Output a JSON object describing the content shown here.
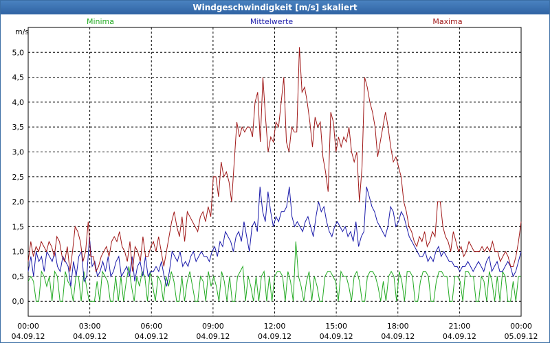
{
  "window": {
    "title": "Windgeschwindigkeit [m/s] skaliert"
  },
  "chart_data": {
    "type": "line",
    "title": "Windgeschwindigkeit [m/s] skaliert",
    "ylabel": "m/s",
    "ylim": [
      -0.3,
      5.5
    ],
    "xlim_hours": [
      0,
      24
    ],
    "yticks": [
      "0,0",
      "0,5",
      "1,0",
      "1,5",
      "2,0",
      "2,5",
      "3,0",
      "3,5",
      "4,0",
      "4,5",
      "5,0"
    ],
    "xticks": [
      {
        "time": "00:00",
        "date": "04.09.12"
      },
      {
        "time": "03:00",
        "date": "04.09.12"
      },
      {
        "time": "06:00",
        "date": "04.09.12"
      },
      {
        "time": "09:00",
        "date": "04.09.12"
      },
      {
        "time": "12:00",
        "date": "04.09.12"
      },
      {
        "time": "15:00",
        "date": "04.09.12"
      },
      {
        "time": "18:00",
        "date": "04.09.12"
      },
      {
        "time": "21:00",
        "date": "04.09.12"
      },
      {
        "time": "00:00",
        "date": "05.09.12"
      }
    ],
    "grid": true,
    "legend_position": "top",
    "series": [
      {
        "name": "Minima",
        "color": "#22aa22",
        "values": [
          0.4,
          0.5,
          0.4,
          0.0,
          0.0,
          0.6,
          0.5,
          0.3,
          0.5,
          0.0,
          0.6,
          0.5,
          0.0,
          0.0,
          0.6,
          0.4,
          0.3,
          0.0,
          0.5,
          0.5,
          0.0,
          0.6,
          0.3,
          0.0,
          0.0,
          0.0,
          0.4,
          0.0,
          0.6,
          0.5,
          0.4,
          0.0,
          0.0,
          0.5,
          0.0,
          0.5,
          0.0,
          0.4,
          0.7,
          0.3,
          0.0,
          0.5,
          0.3,
          0.6,
          0.5,
          0.0,
          0.6,
          0.3,
          0.0,
          0.5,
          0.4,
          0.0,
          0.5,
          0.3,
          0.6,
          0.4,
          0.0,
          0.0,
          0.5,
          0.0,
          0.4,
          0.6,
          0.3,
          0.0,
          0.0,
          0.5,
          0.4,
          0.0,
          0.6,
          0.3,
          0.5,
          0.3,
          0.0,
          0.6,
          0.4,
          0.0,
          0.5,
          0.0,
          0.0,
          0.5,
          0.6,
          0.7,
          0.0,
          0.5,
          0.3,
          0.0,
          0.5,
          0.0,
          0.5,
          0.6,
          0.0,
          0.5,
          0.0,
          0.5,
          0.6,
          0.6,
          0.5,
          0.0,
          0.6,
          0.4,
          0.0,
          1.2,
          0.5,
          0.3,
          0.0,
          0.4,
          0.6,
          0.0,
          0.5,
          0.3,
          0.0,
          0.0,
          0.5,
          0.6,
          0.6,
          0.5,
          0.4,
          0.0,
          0.6,
          0.5,
          0.5,
          0.3,
          0.0,
          0.5,
          0.6,
          0.4,
          0.0,
          0.0,
          0.5,
          0.6,
          0.6,
          0.5,
          0.3,
          0.0,
          0.4,
          0.0,
          0.5,
          0.6,
          0.5,
          0.0,
          0.6,
          0.4,
          0.0,
          0.6,
          0.6,
          0.5,
          0.0,
          0.0,
          0.4,
          0.6,
          0.6,
          0.5,
          0.0,
          0.0,
          0.4,
          0.6,
          0.6,
          0.5,
          0.5,
          0.0,
          0.0,
          0.5,
          0.5,
          0.4,
          0.0,
          0.6,
          0.6,
          0.5,
          0.5,
          0.0,
          0.0,
          0.5,
          0.4,
          0.0,
          0.6,
          0.4,
          0.0,
          0.5,
          0.0,
          0.6,
          0.5,
          0.0,
          0.0,
          0.4,
          0.0,
          0.5,
          0.5
        ]
      },
      {
        "name": "Mittelwerte",
        "color": "#1a1aaa",
        "values": [
          0.6,
          0.9,
          0.5,
          1.0,
          0.8,
          0.9,
          0.6,
          1.0,
          0.9,
          0.8,
          1.0,
          0.7,
          0.6,
          0.9,
          0.8,
          0.7,
          0.3,
          0.8,
          0.5,
          0.9,
          1.0,
          0.4,
          0.5,
          1.3,
          0.7,
          0.8,
          0.5,
          0.6,
          0.8,
          0.6,
          0.9,
          0.5,
          0.6,
          0.8,
          0.9,
          0.5,
          0.6,
          0.7,
          0.5,
          0.9,
          0.4,
          0.7,
          0.8,
          0.5,
          0.9,
          0.5,
          0.6,
          0.6,
          0.7,
          0.6,
          0.8,
          0.5,
          0.3,
          0.6,
          1.0,
          0.9,
          0.8,
          1.0,
          0.7,
          0.8,
          0.7,
          0.9,
          1.0,
          0.8,
          0.9,
          1.0,
          0.9,
          0.9,
          0.8,
          1.0,
          1.1,
          0.9,
          1.2,
          1.1,
          1.4,
          1.3,
          1.2,
          1.0,
          1.3,
          1.4,
          1.2,
          1.6,
          1.3,
          1.0,
          1.5,
          1.6,
          1.4,
          2.3,
          1.8,
          1.6,
          2.2,
          1.8,
          1.5,
          1.7,
          1.6,
          1.8,
          1.8,
          1.9,
          2.3,
          1.7,
          1.5,
          1.6,
          1.5,
          1.4,
          1.6,
          1.7,
          1.5,
          1.3,
          1.7,
          2.0,
          1.8,
          1.9,
          1.6,
          1.4,
          1.3,
          1.5,
          1.6,
          1.5,
          1.4,
          1.5,
          1.3,
          1.4,
          1.2,
          1.6,
          1.1,
          1.3,
          1.4,
          2.3,
          2.1,
          1.9,
          1.8,
          1.6,
          1.5,
          1.4,
          1.3,
          1.5,
          1.9,
          1.8,
          1.5,
          1.6,
          1.8,
          1.7,
          1.5,
          1.3,
          1.2,
          1.1,
          1.0,
          0.9,
          0.9,
          1.0,
          0.8,
          0.9,
          0.8,
          1.0,
          1.1,
          0.9,
          1.0,
          0.9,
          0.8,
          0.8,
          0.7,
          0.7,
          0.6,
          0.7,
          0.7,
          0.8,
          0.7,
          0.6,
          0.7,
          0.8,
          0.7,
          0.6,
          0.8,
          0.9,
          0.6,
          0.7,
          0.8,
          0.6,
          0.6,
          0.7,
          0.8,
          0.7,
          0.5,
          0.6,
          0.8,
          1.0
        ]
      },
      {
        "name": "Maxima",
        "color": "#a01818",
        "values": [
          0.8,
          1.2,
          0.9,
          1.1,
          1.0,
          1.2,
          1.1,
          1.0,
          1.2,
          1.1,
          0.9,
          1.3,
          1.2,
          0.9,
          0.8,
          1.1,
          0.6,
          1.0,
          1.5,
          1.4,
          1.2,
          0.8,
          1.0,
          1.6,
          0.9,
          0.9,
          0.6,
          0.7,
          0.9,
          1.0,
          1.1,
          0.9,
          1.2,
          1.3,
          1.2,
          1.4,
          1.1,
          1.0,
          0.8,
          1.2,
          0.6,
          1.1,
          1.0,
          0.8,
          1.3,
          0.9,
          0.9,
          1.1,
          1.2,
          1.0,
          1.3,
          1.0,
          0.7,
          1.0,
          1.3,
          1.6,
          1.8,
          1.5,
          1.3,
          1.7,
          1.2,
          1.8,
          1.7,
          1.6,
          1.5,
          1.4,
          1.7,
          1.8,
          1.6,
          1.9,
          1.7,
          2.5,
          2.5,
          2.1,
          2.8,
          2.5,
          2.6,
          2.4,
          2.0,
          2.8,
          3.6,
          3.3,
          3.5,
          3.4,
          3.5,
          3.5,
          3.3,
          4.0,
          4.2,
          3.2,
          4.5,
          3.7,
          3.0,
          3.3,
          3.2,
          3.6,
          3.5,
          4.0,
          4.5,
          3.2,
          3.0,
          3.5,
          3.4,
          3.4,
          5.1,
          4.2,
          4.3,
          4.0,
          3.6,
          3.1,
          3.7,
          3.5,
          3.6,
          2.9,
          2.6,
          2.2,
          3.8,
          3.6,
          3.0,
          3.3,
          3.1,
          3.3,
          3.2,
          3.5,
          3.0,
          2.8,
          3.0,
          2.0,
          2.7,
          4.5,
          4.3,
          4.0,
          3.8,
          3.5,
          2.9,
          3.2,
          3.5,
          3.8,
          3.5,
          3.1,
          2.8,
          2.9,
          2.7,
          2.5,
          2.0,
          1.8,
          1.5,
          1.4,
          1.2,
          1.1,
          1.3,
          1.2,
          1.4,
          1.1,
          1.2,
          1.4,
          1.3,
          2.0,
          2.0,
          1.5,
          1.3,
          1.2,
          1.0,
          1.4,
          1.2,
          1.0,
          1.1,
          0.9,
          1.0,
          1.2,
          1.1,
          1.0,
          1.0,
          1.0,
          1.1,
          1.0,
          1.1,
          1.0,
          1.2,
          1.0,
          1.0,
          0.8,
          0.9,
          1.0,
          0.9,
          0.7,
          0.7,
          0.9,
          1.2,
          1.6
        ]
      }
    ]
  }
}
